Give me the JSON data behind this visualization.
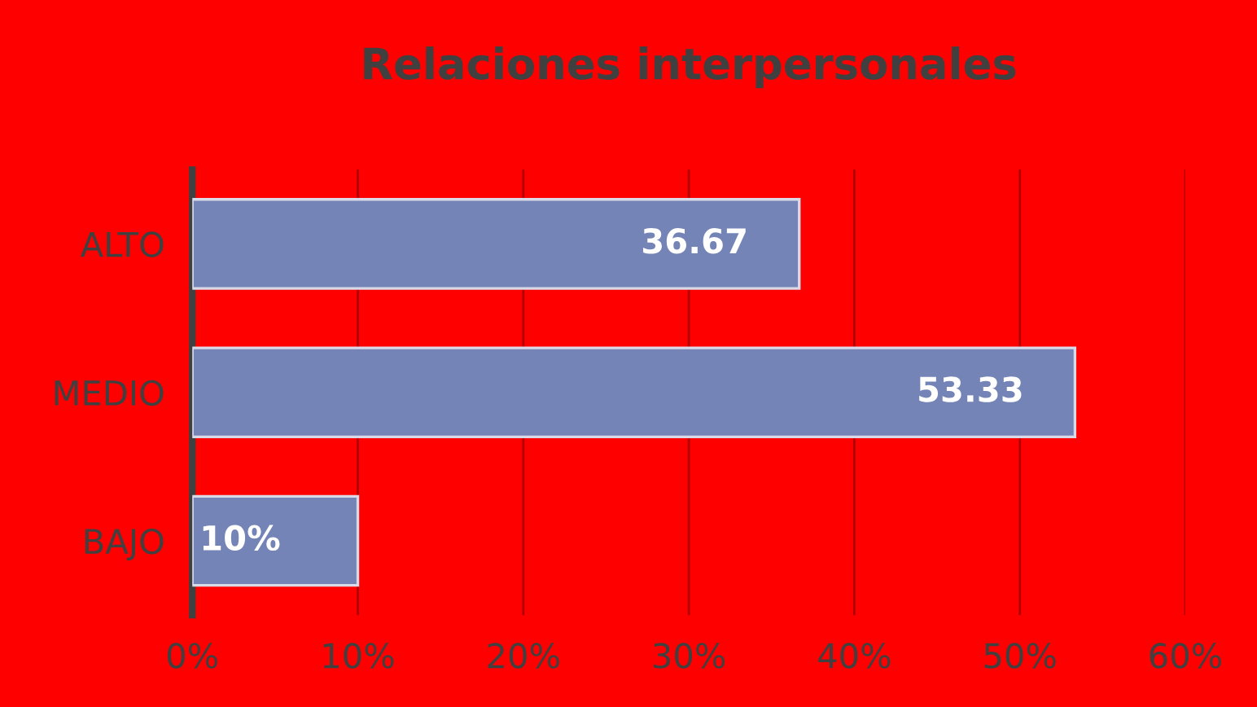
{
  "chart_data": {
    "type": "bar",
    "orientation": "horizontal",
    "title": "Relaciones interpersonales",
    "categories": [
      "ALTO",
      "MEDIO",
      "BAJO"
    ],
    "values": [
      36.67,
      53.33,
      10
    ],
    "value_labels": [
      "36.67",
      "53.33",
      "10%"
    ],
    "color": "#7584b6",
    "xlim": [
      0,
      60
    ],
    "xticks": [
      {
        "value": 0,
        "label": "0%"
      },
      {
        "value": 10,
        "label": "10%"
      },
      {
        "value": 20,
        "label": "20%"
      },
      {
        "value": 30,
        "label": "30%"
      },
      {
        "value": 40,
        "label": "40%"
      },
      {
        "value": 50,
        "label": "50%"
      },
      {
        "value": 60,
        "label": "60%"
      }
    ],
    "grid": "x",
    "legend": false
  }
}
